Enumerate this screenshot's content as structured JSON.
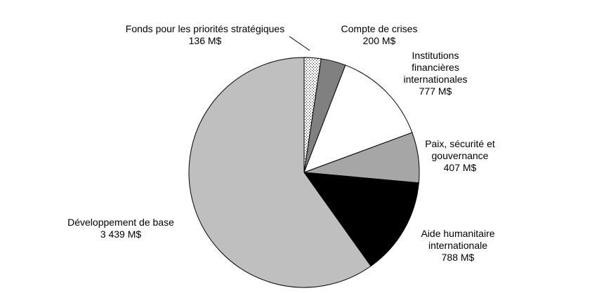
{
  "chart_data": {
    "type": "pie",
    "unit": "M$",
    "slices": [
      {
        "name": "Fonds pour les priorités stratégiques",
        "value": 136,
        "value_label": "136 M$",
        "fill": "pattern-dots"
      },
      {
        "name": "Compte de crises",
        "value": 200,
        "value_label": "200 M$",
        "fill": "#808080"
      },
      {
        "name": "Institutions financières internationales",
        "value": 777,
        "value_label": "777 M$",
        "fill": "#ffffff"
      },
      {
        "name": "Paix, sécurité et gouvernance",
        "value": 407,
        "value_label": "407 M$",
        "fill": "#a6a6a6"
      },
      {
        "name": "Aide humanitaire internationale",
        "value": 788,
        "value_label": "788 M$",
        "fill": "#000000"
      },
      {
        "name": "Développement de base",
        "value": 3439,
        "value_label": "3 439 M$",
        "fill": "#bfbfbf"
      }
    ],
    "labels": [
      {
        "lines": [
          "Fonds pour les priorités stratégiques",
          "136 M$"
        ]
      },
      {
        "lines": [
          "Compte de crises",
          "200 M$"
        ]
      },
      {
        "lines": [
          "Institutions",
          "financières",
          "internationales",
          "777 M$"
        ]
      },
      {
        "lines": [
          "Paix, sécurité et",
          "gouvernance",
          "407 M$"
        ]
      },
      {
        "lines": [
          "Aide humanitaire",
          "internationale",
          "788 M$"
        ]
      },
      {
        "lines": [
          "Développement  de base",
          "3 439 M$"
        ]
      }
    ],
    "legend": "none"
  }
}
